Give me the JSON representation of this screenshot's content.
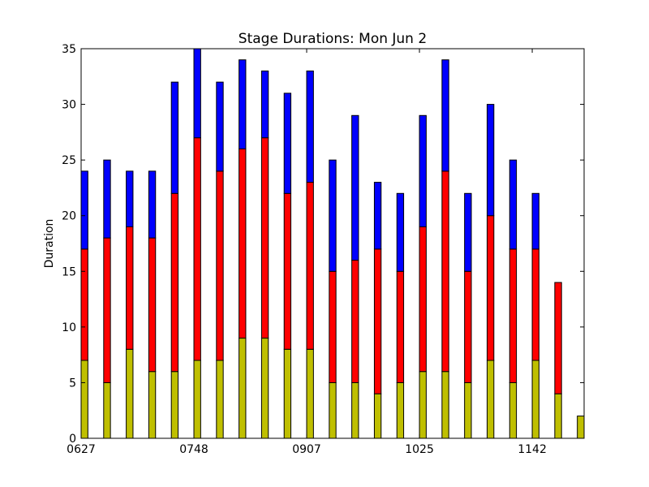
{
  "chart_data": {
    "type": "bar",
    "stacked": true,
    "title": "Stage Durations: Mon Jun 2",
    "xlabel": "",
    "ylabel": "Duration",
    "ylim": [
      0,
      35
    ],
    "yticks": [
      0,
      5,
      10,
      15,
      20,
      25,
      30,
      35
    ],
    "x": [
      0,
      1,
      2,
      3,
      4,
      5,
      6,
      7,
      8,
      9,
      10,
      11,
      12,
      13,
      14,
      15,
      16,
      17,
      18,
      19,
      20,
      21,
      22
    ],
    "xlim": [
      0,
      22.3
    ],
    "xticks": [
      {
        "pos": 0,
        "label": "0627"
      },
      {
        "pos": 5,
        "label": "0748"
      },
      {
        "pos": 10,
        "label": "0907"
      },
      {
        "pos": 15,
        "label": "1025"
      },
      {
        "pos": 20,
        "label": "1142"
      }
    ],
    "grid": false,
    "series": [
      {
        "color": "#bfbf00",
        "values": [
          7,
          5,
          8,
          6,
          6,
          7,
          7,
          9,
          9,
          8,
          8,
          5,
          5,
          4,
          5,
          6,
          6,
          5,
          7,
          5,
          7,
          4,
          2
        ]
      },
      {
        "color": "#ff0000",
        "values": [
          10,
          13,
          11,
          12,
          16,
          20,
          17,
          17,
          18,
          14,
          15,
          10,
          11,
          13,
          10,
          13,
          18,
          10,
          13,
          12,
          10,
          10,
          0
        ]
      },
      {
        "color": "#0000ff",
        "values": [
          7,
          7,
          5,
          6,
          10,
          8,
          8,
          8,
          6,
          9,
          10,
          10,
          13,
          6,
          7,
          10,
          10,
          7,
          10,
          8,
          5,
          0,
          0
        ]
      }
    ]
  }
}
